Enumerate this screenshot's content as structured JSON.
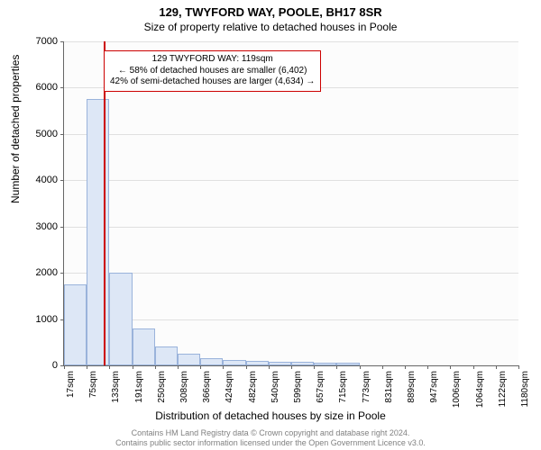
{
  "header": {
    "title_main": "129, TWYFORD WAY, POOLE, BH17 8SR",
    "title_sub": "Size of property relative to detached houses in Poole"
  },
  "axes": {
    "ylabel": "Number of detached properties",
    "xlabel": "Distribution of detached houses by size in Poole",
    "ylim": [
      0,
      7000
    ],
    "ytick_step": 1000,
    "yticks": [
      0,
      1000,
      2000,
      3000,
      4000,
      5000,
      6000,
      7000
    ],
    "xticks": [
      "17sqm",
      "75sqm",
      "133sqm",
      "191sqm",
      "250sqm",
      "308sqm",
      "366sqm",
      "424sqm",
      "482sqm",
      "540sqm",
      "599sqm",
      "657sqm",
      "715sqm",
      "773sqm",
      "831sqm",
      "889sqm",
      "947sqm",
      "1006sqm",
      "1064sqm",
      "1122sqm",
      "1180sqm"
    ],
    "label_fontsize": 12,
    "tick_fontsize": 11
  },
  "chart": {
    "type": "histogram",
    "background_color": "#fcfcfc",
    "grid_color": "#e0e0e0",
    "bar_fill": "#dde7f6",
    "bar_border": "#9ab3db",
    "values": [
      1750,
      5750,
      2000,
      800,
      400,
      250,
      150,
      120,
      100,
      80,
      70,
      60,
      50,
      0,
      0,
      0,
      0,
      0,
      0,
      0
    ],
    "marker_color": "#cc0000",
    "marker_value_sqm": 119
  },
  "annotation": {
    "line1": "129 TWYFORD WAY: 119sqm",
    "line2": "← 58% of detached houses are smaller (6,402)",
    "line3": "42% of semi-detached houses are larger (4,634) →",
    "border_color": "#cc0000"
  },
  "footer": {
    "line1": "Contains HM Land Registry data © Crown copyright and database right 2024.",
    "line2": "Contains public sector information licensed under the Open Government Licence v3.0."
  }
}
